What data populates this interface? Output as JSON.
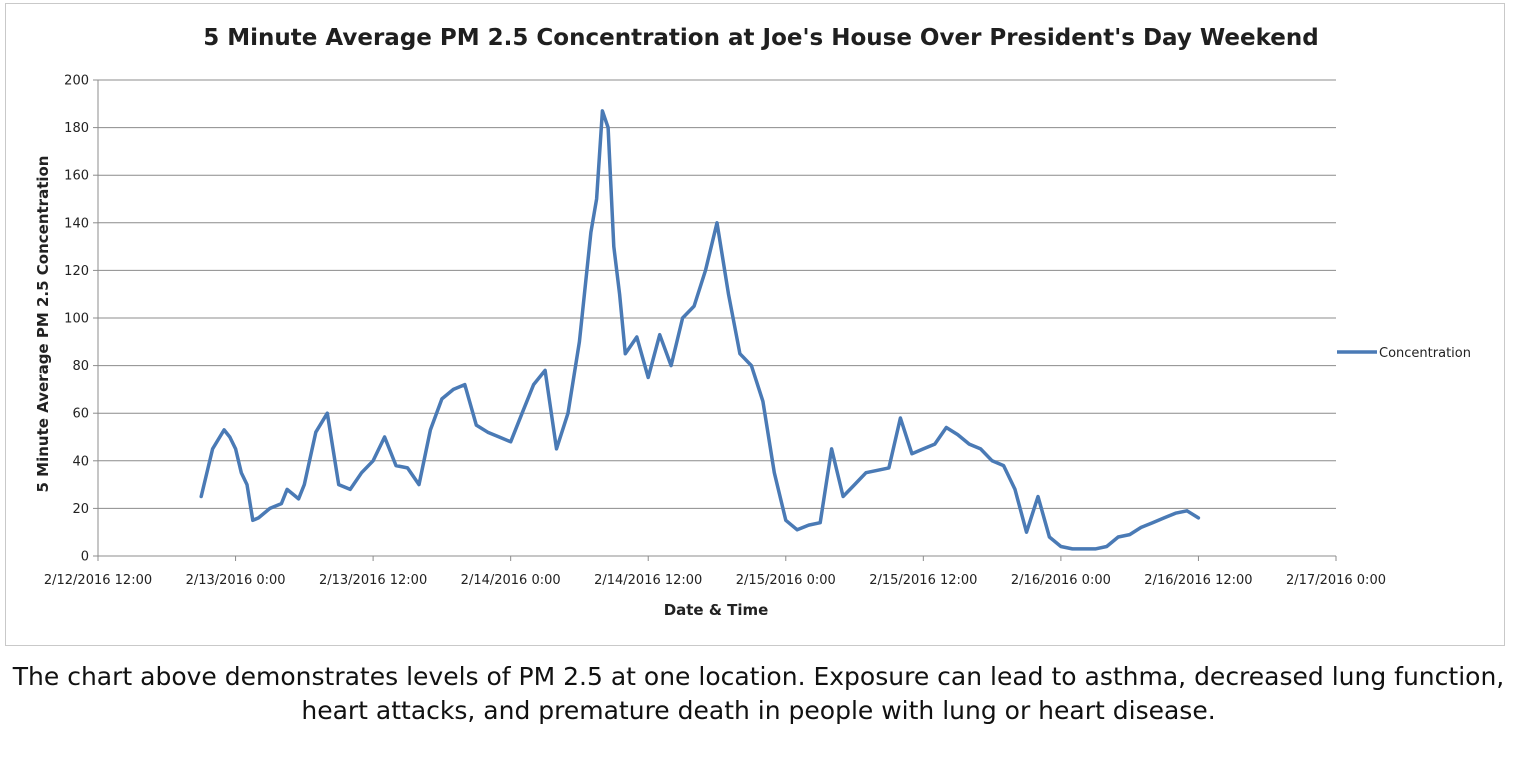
{
  "caption": "The chart above demonstrates levels of PM 2.5 at one location. Exposure can lead to asthma, decreased lung function, heart attacks, and premature death in people with lung or heart disease.",
  "chart_data": {
    "type": "line",
    "title": "5 Minute Average PM 2.5 Concentration at Joe's House Over President's Day Weekend",
    "xlabel": "Date & Time",
    "ylabel": "5 Minute Average PM 2.5 Concentration",
    "xlim": [
      "2/12/2016 12:00",
      "2/17/2016 0:00"
    ],
    "ylim": [
      0,
      200
    ],
    "x_ticks": [
      "2/12/2016 12:00",
      "2/13/2016 0:00",
      "2/13/2016 12:00",
      "2/14/2016 0:00",
      "2/14/2016 12:00",
      "2/15/2016 0:00",
      "2/15/2016 12:00",
      "2/16/2016 0:00",
      "2/16/2016 12:00",
      "2/17/2016 0:00"
    ],
    "y_ticks": [
      0,
      20,
      40,
      60,
      80,
      100,
      120,
      140,
      160,
      180,
      200
    ],
    "grid": "horizontal",
    "legend": "right",
    "series": [
      {
        "name": "Concentration",
        "color": "#4a7ab5",
        "x": [
          "2/12/2016 21:00",
          "2/12/2016 22:00",
          "2/12/2016 23:00",
          "2/12/2016 23:30",
          "2/13/2016 0:00",
          "2/13/2016 0:30",
          "2/13/2016 1:00",
          "2/13/2016 1:30",
          "2/13/2016 2:00",
          "2/13/2016 3:00",
          "2/13/2016 4:00",
          "2/13/2016 4:30",
          "2/13/2016 5:00",
          "2/13/2016 5:30",
          "2/13/2016 6:00",
          "2/13/2016 7:00",
          "2/13/2016 8:00",
          "2/13/2016 9:00",
          "2/13/2016 10:00",
          "2/13/2016 11:00",
          "2/13/2016 12:00",
          "2/13/2016 13:00",
          "2/13/2016 14:00",
          "2/13/2016 15:00",
          "2/13/2016 16:00",
          "2/13/2016 17:00",
          "2/13/2016 18:00",
          "2/13/2016 19:00",
          "2/13/2016 20:00",
          "2/13/2016 21:00",
          "2/13/2016 22:00",
          "2/13/2016 23:00",
          "2/14/2016 0:00",
          "2/14/2016 1:00",
          "2/14/2016 2:00",
          "2/14/2016 3:00",
          "2/14/2016 4:00",
          "2/14/2016 5:00",
          "2/14/2016 6:00",
          "2/14/2016 7:00",
          "2/14/2016 7:30",
          "2/14/2016 8:00",
          "2/14/2016 8:30",
          "2/14/2016 9:00",
          "2/14/2016 9:30",
          "2/14/2016 10:00",
          "2/14/2016 11:00",
          "2/14/2016 12:00",
          "2/14/2016 13:00",
          "2/14/2016 14:00",
          "2/14/2016 15:00",
          "2/14/2016 16:00",
          "2/14/2016 17:00",
          "2/14/2016 18:00",
          "2/14/2016 19:00",
          "2/14/2016 20:00",
          "2/14/2016 21:00",
          "2/14/2016 22:00",
          "2/14/2016 23:00",
          "2/15/2016 0:00",
          "2/15/2016 1:00",
          "2/15/2016 2:00",
          "2/15/2016 3:00",
          "2/15/2016 4:00",
          "2/15/2016 5:00",
          "2/15/2016 6:00",
          "2/15/2016 7:00",
          "2/15/2016 8:00",
          "2/15/2016 9:00",
          "2/15/2016 10:00",
          "2/15/2016 11:00",
          "2/15/2016 12:00",
          "2/15/2016 13:00",
          "2/15/2016 14:00",
          "2/15/2016 15:00",
          "2/15/2016 16:00",
          "2/15/2016 17:00",
          "2/15/2016 18:00",
          "2/15/2016 19:00",
          "2/15/2016 20:00",
          "2/15/2016 21:00",
          "2/15/2016 22:00",
          "2/15/2016 23:00",
          "2/16/2016 0:00",
          "2/16/2016 1:00",
          "2/16/2016 2:00",
          "2/16/2016 3:00",
          "2/16/2016 4:00",
          "2/16/2016 5:00",
          "2/16/2016 6:00",
          "2/16/2016 7:00",
          "2/16/2016 8:00",
          "2/16/2016 9:00",
          "2/16/2016 10:00",
          "2/16/2016 11:00",
          "2/16/2016 12:00"
        ],
        "values": [
          25,
          45,
          53,
          50,
          45,
          35,
          30,
          15,
          16,
          20,
          22,
          28,
          26,
          24,
          30,
          52,
          60,
          30,
          28,
          35,
          40,
          50,
          38,
          37,
          30,
          53,
          66,
          70,
          72,
          55,
          52,
          50,
          48,
          60,
          72,
          78,
          45,
          60,
          90,
          136,
          150,
          187,
          180,
          130,
          110,
          85,
          92,
          75,
          93,
          80,
          100,
          105,
          120,
          140,
          110,
          85,
          80,
          65,
          35,
          15,
          11,
          13,
          14,
          45,
          25,
          30,
          35,
          36,
          37,
          58,
          43,
          45,
          47,
          54,
          51,
          47,
          45,
          40,
          38,
          28,
          10,
          25,
          8,
          4,
          3,
          3,
          3,
          4,
          8,
          9,
          12,
          14,
          16,
          18,
          19,
          16
        ]
      }
    ]
  }
}
